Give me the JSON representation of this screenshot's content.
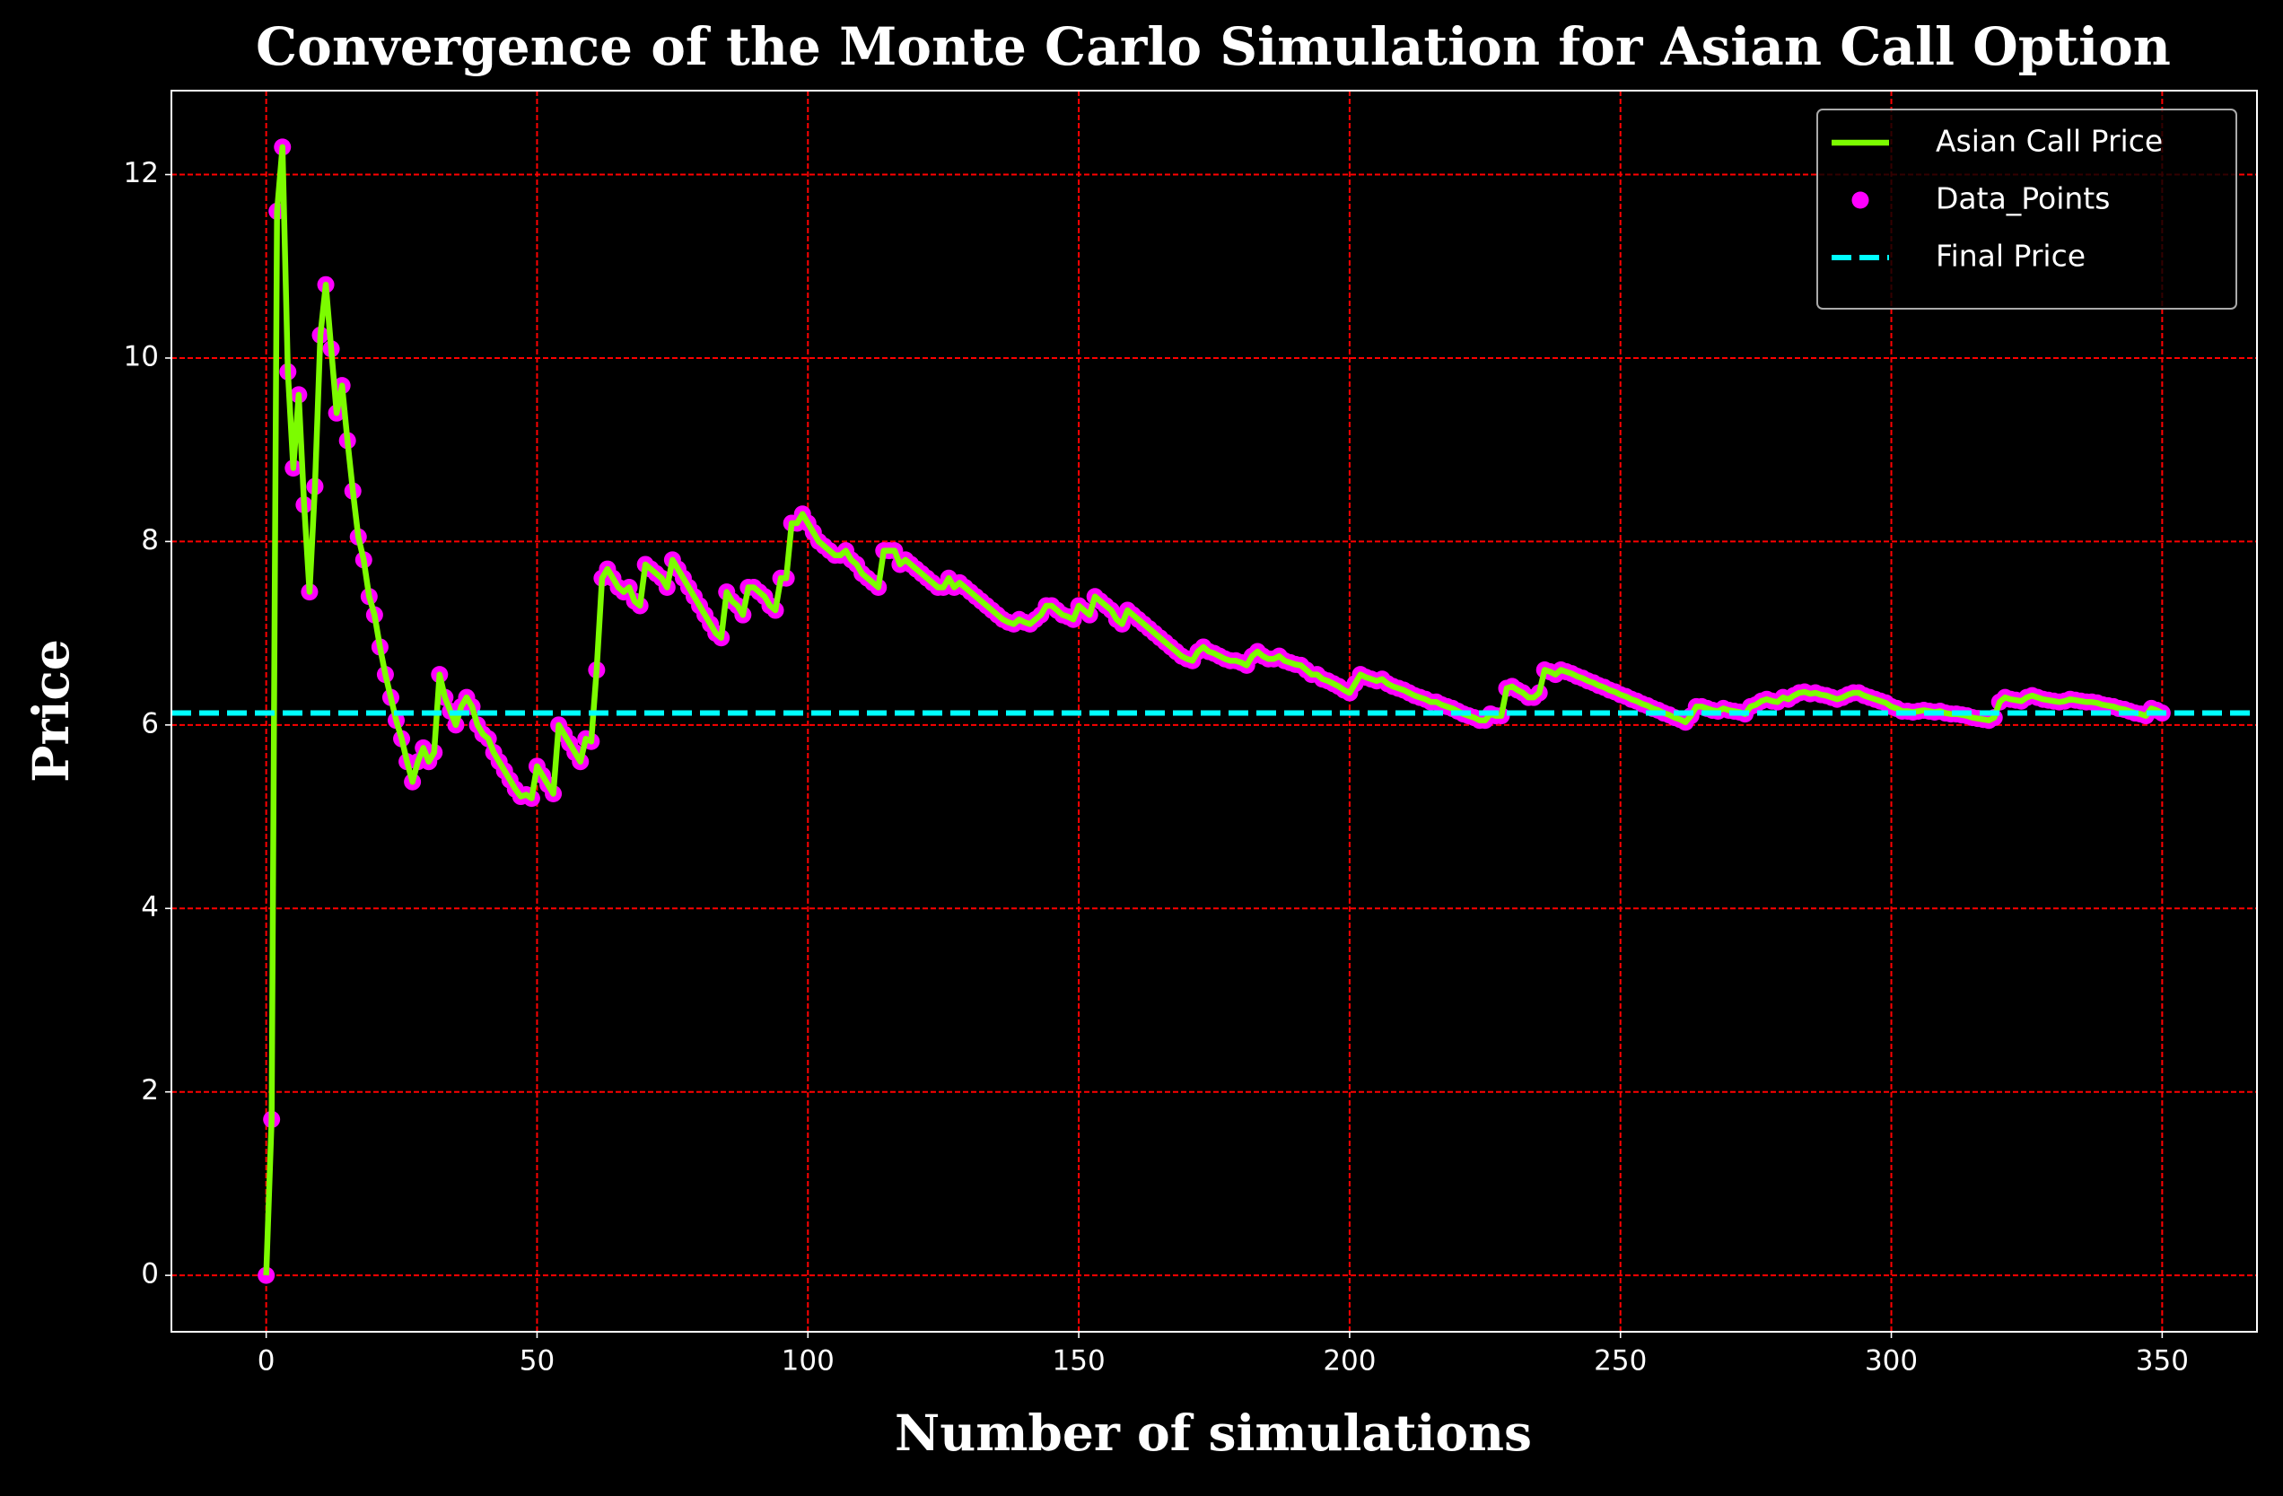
{
  "chart_data": {
    "type": "line",
    "title": "Convergence of the Monte Carlo Simulation for Asian Call Option",
    "xlabel": "Number of simulations",
    "ylabel": "Price",
    "x": [
      0,
      1,
      2,
      3,
      4,
      5,
      6,
      7,
      8,
      9,
      10,
      11,
      12,
      13,
      14,
      15,
      16,
      17,
      18,
      19,
      20,
      21,
      22,
      23,
      24,
      25,
      26,
      27,
      28,
      29,
      30,
      31,
      32,
      33,
      34,
      35,
      36,
      37,
      38,
      39,
      40,
      41,
      42,
      43,
      44,
      45,
      46,
      47,
      48,
      49,
      50,
      51,
      52,
      53,
      54,
      55,
      56,
      57,
      58,
      59,
      60,
      61,
      62,
      63,
      64,
      65,
      66,
      67,
      68,
      69,
      70,
      71,
      72,
      73,
      74,
      75,
      76,
      77,
      78,
      79,
      80,
      81,
      82,
      83,
      84,
      85,
      86,
      87,
      88,
      89,
      90,
      91,
      92,
      93,
      94,
      95,
      96,
      97,
      98,
      99,
      100,
      101,
      102,
      103,
      104,
      105,
      106,
      107,
      108,
      109,
      110,
      111,
      112,
      113,
      114,
      115,
      116,
      117,
      118,
      119,
      120,
      121,
      122,
      123,
      124,
      125,
      126,
      127,
      128,
      129,
      130,
      131,
      132,
      133,
      134,
      135,
      136,
      137,
      138,
      139,
      140,
      141,
      142,
      143,
      144,
      145,
      146,
      147,
      148,
      149,
      150,
      151,
      152,
      153,
      154,
      155,
      156,
      157,
      158,
      159,
      160,
      161,
      162,
      163,
      164,
      165,
      166,
      167,
      168,
      169,
      170,
      171,
      172,
      173,
      174,
      175,
      176,
      177,
      178,
      179,
      180,
      181,
      182,
      183,
      184,
      185,
      186,
      187,
      188,
      189,
      190,
      191,
      192,
      193,
      194,
      195,
      196,
      197,
      198,
      199,
      200,
      201,
      202,
      203,
      204,
      205,
      206,
      207,
      208,
      209,
      210,
      211,
      212,
      213,
      214,
      215,
      216,
      217,
      218,
      219,
      220,
      221,
      222,
      223,
      224,
      225,
      226,
      227,
      228,
      229,
      230,
      231,
      232,
      233,
      234,
      235,
      236,
      237,
      238,
      239,
      240,
      241,
      242,
      243,
      244,
      245,
      246,
      247,
      248,
      249,
      250,
      251,
      252,
      253,
      254,
      255,
      256,
      257,
      258,
      259,
      260,
      261,
      262,
      263,
      264,
      265,
      266,
      267,
      268,
      269,
      270,
      271,
      272,
      273,
      274,
      275,
      276,
      277,
      278,
      279,
      280,
      281,
      282,
      283,
      284,
      285,
      286,
      287,
      288,
      289,
      290,
      291,
      292,
      293,
      294,
      295,
      296,
      297,
      298,
      299,
      300,
      301,
      302,
      303,
      304,
      305,
      306,
      307,
      308,
      309,
      310,
      311,
      312,
      313,
      314,
      315,
      316,
      317,
      318,
      319,
      320,
      321,
      322,
      323,
      324,
      325,
      326,
      327,
      328,
      329,
      330,
      331,
      332,
      333,
      334,
      335,
      336,
      337,
      338,
      339,
      340,
      341,
      342,
      343,
      344,
      345,
      346,
      347,
      348,
      349,
      350
    ],
    "series": [
      {
        "name": "Asian Call Price",
        "color": "#7cfc00",
        "values": [
          0,
          1.7,
          11.6,
          12.3,
          9.85,
          8.8,
          9.6,
          8.4,
          7.45,
          8.6,
          10.25,
          10.8,
          10.1,
          9.4,
          9.7,
          9.1,
          8.55,
          8.05,
          7.8,
          7.4,
          7.2,
          6.85,
          6.55,
          6.3,
          6.05,
          5.85,
          5.6,
          5.38,
          5.6,
          5.75,
          5.6,
          5.7,
          6.55,
          6.3,
          6.15,
          6.0,
          6.2,
          6.3,
          6.2,
          6.0,
          5.9,
          5.85,
          5.7,
          5.6,
          5.5,
          5.4,
          5.3,
          5.22,
          5.24,
          5.2,
          5.55,
          5.45,
          5.35,
          5.25,
          6.0,
          5.9,
          5.8,
          5.7,
          5.6,
          5.85,
          5.82,
          6.6,
          7.6,
          7.7,
          7.6,
          7.5,
          7.45,
          7.5,
          7.35,
          7.3,
          7.75,
          7.7,
          7.65,
          7.6,
          7.5,
          7.8,
          7.7,
          7.6,
          7.5,
          7.4,
          7.3,
          7.2,
          7.1,
          7.0,
          6.95,
          7.45,
          7.35,
          7.3,
          7.2,
          7.5,
          7.5,
          7.45,
          7.4,
          7.3,
          7.25,
          7.6,
          7.6,
          8.2,
          8.2,
          8.3,
          8.2,
          8.1,
          8.0,
          7.95,
          7.9,
          7.85,
          7.85,
          7.9,
          7.8,
          7.75,
          7.65,
          7.6,
          7.55,
          7.5,
          7.9,
          7.9,
          7.9,
          7.75,
          7.8,
          7.75,
          7.7,
          7.65,
          7.6,
          7.55,
          7.5,
          7.5,
          7.6,
          7.5,
          7.55,
          7.5,
          7.45,
          7.4,
          7.35,
          7.3,
          7.25,
          7.2,
          7.15,
          7.12,
          7.1,
          7.15,
          7.12,
          7.1,
          7.15,
          7.2,
          7.3,
          7.3,
          7.25,
          7.2,
          7.18,
          7.15,
          7.3,
          7.25,
          7.2,
          7.4,
          7.35,
          7.3,
          7.25,
          7.15,
          7.1,
          7.25,
          7.2,
          7.15,
          7.1,
          7.05,
          7.0,
          6.95,
          6.9,
          6.85,
          6.8,
          6.75,
          6.72,
          6.7,
          6.8,
          6.85,
          6.8,
          6.78,
          6.75,
          6.72,
          6.7,
          6.7,
          6.68,
          6.65,
          6.75,
          6.8,
          6.75,
          6.72,
          6.72,
          6.75,
          6.7,
          6.68,
          6.66,
          6.65,
          6.6,
          6.55,
          6.55,
          6.5,
          6.48,
          6.45,
          6.42,
          6.38,
          6.35,
          6.45,
          6.55,
          6.52,
          6.5,
          6.48,
          6.5,
          6.45,
          6.42,
          6.4,
          6.38,
          6.35,
          6.32,
          6.3,
          6.28,
          6.25,
          6.25,
          6.22,
          6.2,
          6.18,
          6.15,
          6.12,
          6.1,
          6.08,
          6.05,
          6.05,
          6.12,
          6.1,
          6.1,
          6.4,
          6.42,
          6.38,
          6.35,
          6.3,
          6.3,
          6.35,
          6.6,
          6.58,
          6.55,
          6.6,
          6.58,
          6.56,
          6.53,
          6.51,
          6.48,
          6.46,
          6.43,
          6.41,
          6.38,
          6.36,
          6.33,
          6.31,
          6.28,
          6.26,
          6.23,
          6.21,
          6.18,
          6.16,
          6.13,
          6.11,
          6.08,
          6.06,
          6.03,
          6.1,
          6.2,
          6.2,
          6.18,
          6.16,
          6.15,
          6.18,
          6.16,
          6.15,
          6.14,
          6.12,
          6.2,
          6.22,
          6.26,
          6.28,
          6.26,
          6.25,
          6.3,
          6.28,
          6.32,
          6.35,
          6.36,
          6.34,
          6.35,
          6.33,
          6.32,
          6.3,
          6.28,
          6.3,
          6.33,
          6.35,
          6.35,
          6.32,
          6.3,
          6.28,
          6.26,
          6.24,
          6.2,
          6.18,
          6.15,
          6.15,
          6.14,
          6.15,
          6.16,
          6.15,
          6.14,
          6.15,
          6.13,
          6.12,
          6.12,
          6.11,
          6.1,
          6.08,
          6.07,
          6.06,
          6.05,
          6.08,
          6.25,
          6.3,
          6.28,
          6.27,
          6.26,
          6.3,
          6.32,
          6.3,
          6.28,
          6.27,
          6.26,
          6.25,
          6.26,
          6.28,
          6.27,
          6.26,
          6.25,
          6.25,
          6.24,
          6.22,
          6.21,
          6.2,
          6.18,
          6.17,
          6.15,
          6.13,
          6.12,
          6.1,
          6.18,
          6.16,
          6.13
        ]
      }
    ],
    "scatter": {
      "name": "Data_Points",
      "color": "#ff00ff"
    },
    "hline": {
      "name": "Final Price",
      "value": 6.13,
      "color": "#00ffff"
    },
    "xlim": [
      -17.5,
      367.5
    ],
    "xticks": [
      0,
      50,
      100,
      150,
      200,
      250,
      300,
      350
    ],
    "ylim": [
      -0.615,
      12.915
    ],
    "yticks": [
      0,
      2,
      4,
      6,
      8,
      10,
      12
    ],
    "grid": true,
    "grid_color": "#ff0000",
    "legend": "upper right"
  }
}
